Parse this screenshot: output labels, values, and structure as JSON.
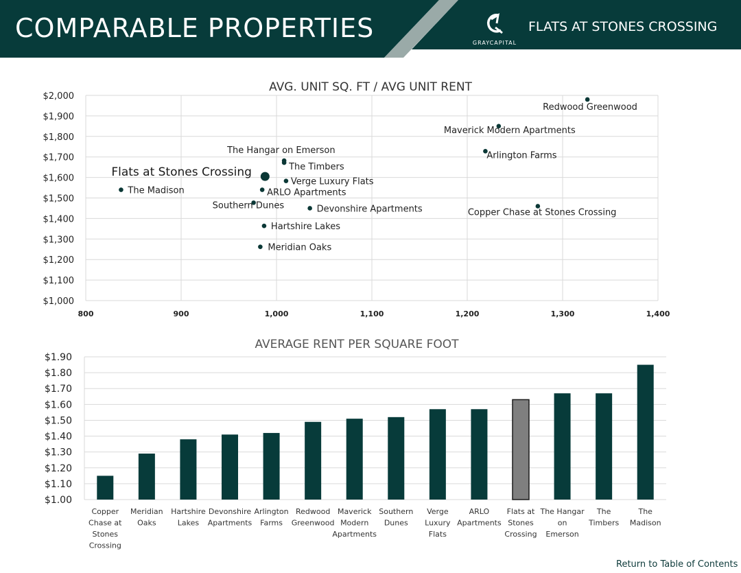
{
  "header": {
    "title": "COMPARABLE PROPERTIES",
    "property": "FLATS AT STONES CROSSING",
    "logo_text": "GRAYCAPITAL",
    "colors": {
      "band": "#073b3a",
      "stripe": "#9aaaa8"
    }
  },
  "chart_data": [
    {
      "type": "scatter",
      "title": "AVG. UNIT SQ. FT / AVG UNIT RENT",
      "xlim": [
        800,
        1400
      ],
      "ylim": [
        1000,
        2000
      ],
      "x_ticks": [
        "800",
        "900",
        "1,000",
        "1,100",
        "1,200",
        "1,300",
        "1,400"
      ],
      "y_ticks": [
        "$1,000",
        "$1,100",
        "$1,200",
        "$1,300",
        "$1,400",
        "$1,500",
        "$1,600",
        "$1,700",
        "$1,800",
        "$1,900",
        "$2,000"
      ],
      "grid": true,
      "points": [
        {
          "label": "Redwood Greenwood",
          "x": 1326,
          "y": 1980,
          "highlight": false
        },
        {
          "label": "Maverick Modern Apartments",
          "x": 1233,
          "y": 1850,
          "highlight": false
        },
        {
          "label": "Arlington Farms",
          "x": 1219,
          "y": 1728,
          "highlight": false
        },
        {
          "label": "The Hangar on Emerson",
          "x": 1008,
          "y": 1682,
          "highlight": false
        },
        {
          "label": "The Timbers",
          "x": 1008,
          "y": 1672,
          "highlight": false
        },
        {
          "label": "Flats at Stones Crossing",
          "x": 988,
          "y": 1605,
          "highlight": true
        },
        {
          "label": "Verge Luxury Flats",
          "x": 1010,
          "y": 1583,
          "highlight": false
        },
        {
          "label": "The Madison",
          "x": 837,
          "y": 1540,
          "highlight": false
        },
        {
          "label": "ARLO Apartments",
          "x": 985,
          "y": 1540,
          "highlight": false
        },
        {
          "label": "Southern Dunes",
          "x": 976,
          "y": 1477,
          "highlight": false
        },
        {
          "label": "Devonshire Apartments",
          "x": 1035,
          "y": 1450,
          "highlight": false
        },
        {
          "label": "Copper Chase at Stones Crossing",
          "x": 1274,
          "y": 1460,
          "highlight": false
        },
        {
          "label": "Hartshire Lakes",
          "x": 987,
          "y": 1364,
          "highlight": false
        },
        {
          "label": "Meridian Oaks",
          "x": 983,
          "y": 1262,
          "highlight": false
        }
      ],
      "colors": {
        "point": "#0b3836",
        "grid": "#d9d9d9"
      }
    },
    {
      "type": "bar",
      "title": "AVERAGE RENT PER SQUARE FOOT",
      "ylim": [
        1.0,
        1.9
      ],
      "y_ticks": [
        "$1.00",
        "$1.10",
        "$1.20",
        "$1.30",
        "$1.40",
        "$1.50",
        "$1.60",
        "$1.70",
        "$1.80",
        "$1.90"
      ],
      "grid": true,
      "categories": [
        [
          "Copper",
          "Chase at",
          "Stones",
          "Crossing"
        ],
        [
          "Meridian",
          "Oaks"
        ],
        [
          "Hartshire",
          "Lakes"
        ],
        [
          "Devonshire",
          "Apartments"
        ],
        [
          "Arlington",
          "Farms"
        ],
        [
          "Redwood",
          "Greenwood"
        ],
        [
          "Maverick",
          "Modern",
          "Apartments"
        ],
        [
          "Southern",
          "Dunes"
        ],
        [
          "Verge",
          "Luxury",
          "Flats"
        ],
        [
          "ARLO",
          "Apartments"
        ],
        [
          "Flats at",
          "Stones",
          "Crossing"
        ],
        [
          "The Hangar",
          "on",
          "Emerson"
        ],
        [
          "The",
          "Timbers"
        ],
        [
          "The",
          "Madison"
        ]
      ],
      "values": [
        1.15,
        1.29,
        1.38,
        1.41,
        1.42,
        1.49,
        1.51,
        1.52,
        1.57,
        1.57,
        1.63,
        1.67,
        1.67,
        1.85
      ],
      "highlight_index": 10,
      "colors": {
        "bar": "#073b3a",
        "highlight": "#7f7f7f",
        "grid": "#d9d9d9"
      }
    }
  ],
  "footer": {
    "link": "Return to Table of Contents"
  }
}
